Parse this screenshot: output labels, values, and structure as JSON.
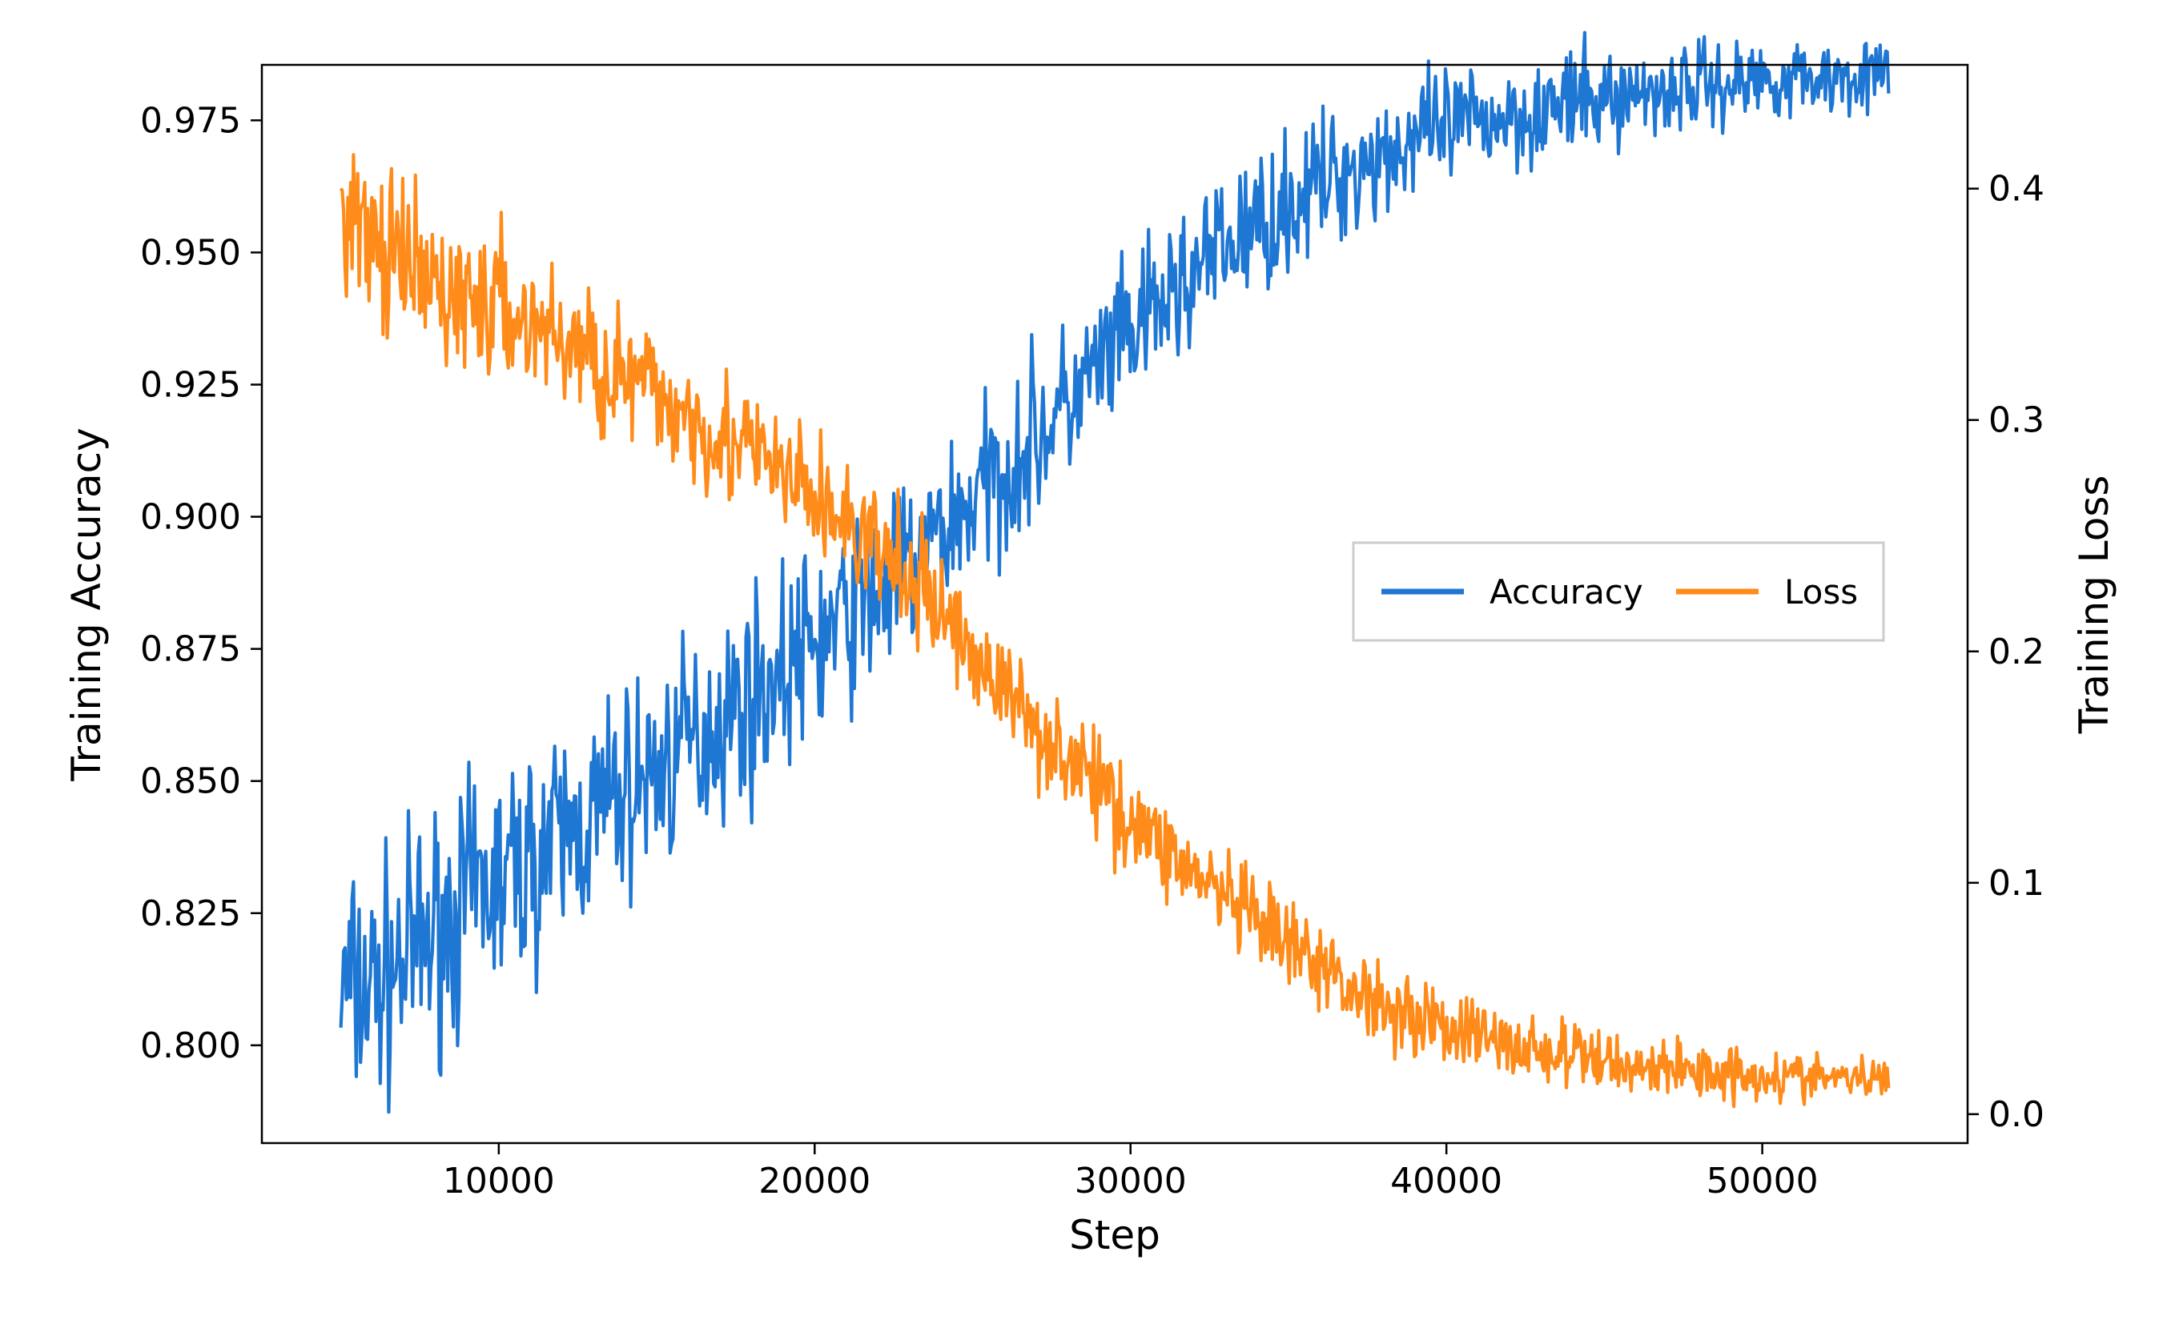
{
  "chart_data": {
    "type": "line",
    "title": "",
    "xlabel": "Step",
    "ylabel_left": "Training Accuracy",
    "ylabel_right": "Training Loss",
    "xlim": [
      2500,
      56500
    ],
    "ylim_left": [
      0.7815,
      0.9855
    ],
    "ylim_right": [
      -0.0125,
      0.4535
    ],
    "x_ticks": [
      10000,
      20000,
      30000,
      40000,
      50000
    ],
    "x_tick_labels": [
      "10000",
      "20000",
      "30000",
      "40000",
      "50000"
    ],
    "y_left_ticks": [
      0.8,
      0.825,
      0.85,
      0.875,
      0.9,
      0.925,
      0.95,
      0.975
    ],
    "y_left_tick_labels": [
      "0.800",
      "0.825",
      "0.850",
      "0.875",
      "0.900",
      "0.925",
      "0.950",
      "0.975"
    ],
    "y_right_ticks": [
      0.0,
      0.1,
      0.2,
      0.3,
      0.4
    ],
    "y_right_tick_labels": [
      "0.0",
      "0.1",
      "0.2",
      "0.3",
      "0.4"
    ],
    "legend": {
      "position": "center-right",
      "entries": [
        "Accuracy",
        "Loss"
      ]
    },
    "grid": false,
    "colors": {
      "accuracy": "#1f77d4",
      "loss": "#ff8c1a"
    },
    "series": [
      {
        "name": "Accuracy",
        "axis": "left",
        "x": [
          5000,
          6000,
          7000,
          8000,
          9000,
          10000,
          11000,
          12000,
          13000,
          14000,
          15000,
          16000,
          17000,
          18000,
          19000,
          20000,
          21000,
          22000,
          23000,
          24000,
          25000,
          26000,
          27000,
          28000,
          29000,
          30000,
          31000,
          32000,
          33000,
          34000,
          35000,
          36000,
          37000,
          38000,
          39000,
          40000,
          41000,
          42000,
          43000,
          44000,
          45000,
          46000,
          47000,
          48000,
          49000,
          50000,
          51000,
          52000,
          53000,
          54000
        ],
        "values": [
          0.81,
          0.811,
          0.816,
          0.822,
          0.827,
          0.831,
          0.835,
          0.839,
          0.843,
          0.848,
          0.852,
          0.857,
          0.862,
          0.866,
          0.871,
          0.876,
          0.881,
          0.886,
          0.891,
          0.897,
          0.903,
          0.909,
          0.915,
          0.921,
          0.928,
          0.934,
          0.94,
          0.946,
          0.951,
          0.955,
          0.959,
          0.963,
          0.966,
          0.969,
          0.971,
          0.973,
          0.975,
          0.976,
          0.977,
          0.978,
          0.979,
          0.98,
          0.981,
          0.982,
          0.982,
          0.983,
          0.983,
          0.983,
          0.984,
          0.983
        ]
      },
      {
        "name": "Loss",
        "axis": "right",
        "x": [
          5000,
          6000,
          7000,
          8000,
          9000,
          10000,
          11000,
          12000,
          13000,
          14000,
          15000,
          16000,
          17000,
          18000,
          19000,
          20000,
          21000,
          22000,
          23000,
          24000,
          25000,
          26000,
          27000,
          28000,
          29000,
          30000,
          31000,
          32000,
          33000,
          34000,
          35000,
          36000,
          37000,
          38000,
          39000,
          40000,
          41000,
          42000,
          43000,
          44000,
          45000,
          46000,
          47000,
          48000,
          49000,
          50000,
          51000,
          52000,
          53000,
          54000
        ],
        "values": [
          0.395,
          0.375,
          0.365,
          0.357,
          0.352,
          0.348,
          0.342,
          0.335,
          0.326,
          0.318,
          0.31,
          0.303,
          0.294,
          0.285,
          0.276,
          0.266,
          0.255,
          0.243,
          0.231,
          0.218,
          0.2,
          0.183,
          0.168,
          0.155,
          0.141,
          0.128,
          0.116,
          0.104,
          0.093,
          0.082,
          0.072,
          0.063,
          0.055,
          0.048,
          0.043,
          0.038,
          0.034,
          0.03,
          0.027,
          0.025,
          0.023,
          0.021,
          0.02,
          0.019,
          0.018,
          0.017,
          0.016,
          0.016,
          0.015,
          0.015
        ]
      }
    ]
  }
}
